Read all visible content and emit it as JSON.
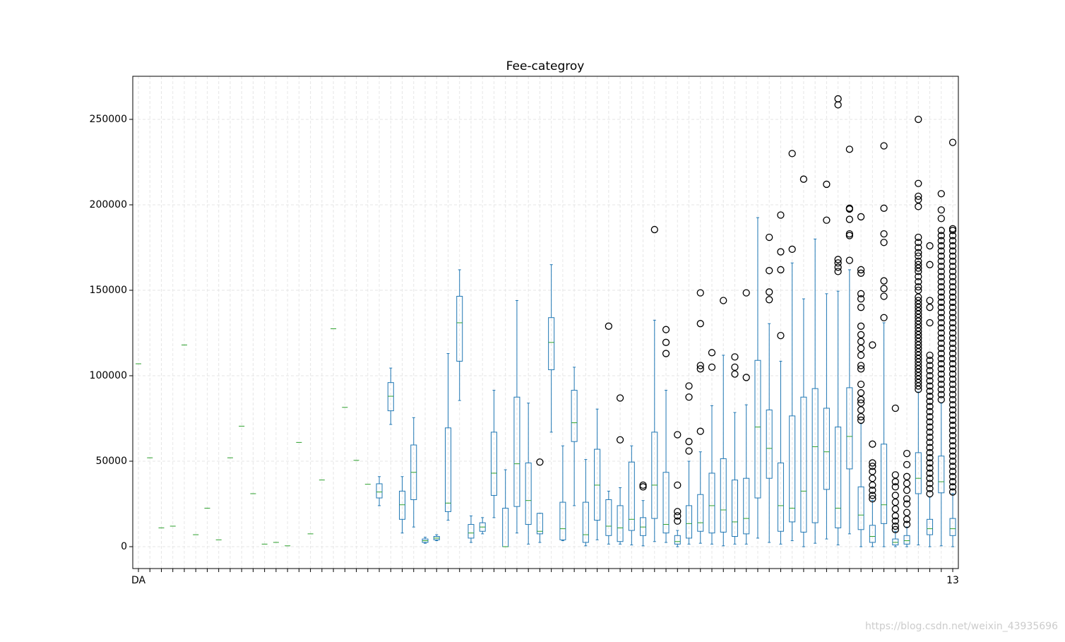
{
  "chart_data": {
    "type": "boxplot",
    "title": "Fee-categroy",
    "categories": [
      "DA",
      null,
      null,
      null,
      null,
      null,
      null,
      null,
      null,
      null,
      null,
      null,
      null,
      null,
      null,
      null,
      null,
      null,
      null,
      null,
      null,
      null,
      null,
      null,
      null,
      null,
      null,
      null,
      null,
      null,
      null,
      null,
      null,
      null,
      null,
      null,
      null,
      null,
      null,
      null,
      null,
      null,
      null,
      null,
      null,
      null,
      null,
      null,
      null,
      null,
      null,
      null,
      null,
      null,
      null,
      null,
      null,
      null,
      null,
      null,
      null,
      null,
      null,
      null,
      null,
      null,
      null,
      null,
      null,
      null,
      null,
      "13"
    ],
    "ylim": [
      -12800,
      275200
    ],
    "yticks": [
      0,
      50000,
      100000,
      150000,
      200000,
      250000
    ],
    "grid": true,
    "box_color": "#1f77b4",
    "median_color": "#2ca02c",
    "boxes": [
      [
        107000,
        107000,
        107000,
        107000,
        107000
      ],
      [
        52000,
        52000,
        52000,
        52000,
        52000
      ],
      [
        11000,
        11000,
        11000,
        11000,
        11000
      ],
      [
        12000,
        12000,
        12000,
        12000,
        12000
      ],
      [
        118000,
        118000,
        118000,
        118000,
        118000
      ],
      [
        7000,
        7000,
        7000,
        7000,
        7000
      ],
      [
        22500,
        22500,
        22500,
        22500,
        22500
      ],
      [
        4000,
        4000,
        4000,
        4000,
        4000
      ],
      [
        52000,
        52000,
        52000,
        52000,
        52000
      ],
      [
        70500,
        70500,
        70500,
        70500,
        70500
      ],
      [
        31000,
        31000,
        31000,
        31000,
        31000
      ],
      [
        1500,
        1500,
        1500,
        1500,
        1500
      ],
      [
        2500,
        2500,
        2500,
        2500,
        2500
      ],
      [
        500,
        500,
        500,
        500,
        500
      ],
      [
        61000,
        61000,
        61000,
        61000,
        61000
      ],
      [
        7500,
        7500,
        7500,
        7500,
        7500
      ],
      [
        39000,
        39000,
        39000,
        39000,
        39000
      ],
      [
        127500,
        127500,
        127500,
        127500,
        127500
      ],
      [
        81500,
        81500,
        81500,
        81500,
        81500
      ],
      [
        50500,
        50500,
        50500,
        50500,
        50500
      ],
      [
        36500,
        36500,
        36500,
        36500,
        36500
      ],
      [
        24000,
        28500,
        32000,
        36800,
        41000
      ],
      [
        71500,
        79500,
        88000,
        96000,
        104500
      ],
      [
        8000,
        16000,
        24500,
        32500,
        41000
      ],
      [
        11500,
        27500,
        43500,
        59500,
        75500
      ],
      [
        2000,
        2500,
        3500,
        4500,
        5500
      ],
      [
        3500,
        4000,
        5000,
        6000,
        7000
      ],
      [
        15500,
        20500,
        25500,
        69500,
        113000
      ],
      [
        85500,
        108500,
        131000,
        146500,
        162000
      ],
      [
        2500,
        5000,
        8000,
        13000,
        18000
      ],
      [
        7500,
        9000,
        11500,
        14000,
        17000
      ],
      [
        17000,
        30000,
        43000,
        67000,
        91500
      ],
      [
        0,
        0,
        0,
        22500,
        45000
      ],
      [
        8000,
        23500,
        48500,
        87500,
        144000
      ],
      [
        1500,
        13000,
        27000,
        49000,
        84000
      ],
      [
        2500,
        7500,
        9000,
        19500,
        19500
      ],
      [
        67000,
        103500,
        119500,
        134000,
        165000
      ],
      [
        3500,
        4000,
        10500,
        26000,
        59000
      ],
      [
        24000,
        61500,
        72500,
        91500,
        105000
      ],
      [
        500,
        2500,
        7000,
        26000,
        51000
      ],
      [
        4000,
        15500,
        36000,
        57000,
        80500
      ],
      [
        1500,
        6500,
        12000,
        27500,
        32500
      ],
      [
        1500,
        3000,
        11000,
        24000,
        34500
      ],
      [
        1000,
        9500,
        16000,
        49500,
        59000
      ],
      [
        500,
        6500,
        11500,
        17000,
        27000
      ],
      [
        3000,
        16500,
        36000,
        67000,
        132500
      ],
      [
        2500,
        8000,
        13000,
        43500,
        91500
      ],
      [
        0,
        1500,
        3000,
        6500,
        9500
      ],
      [
        1500,
        5000,
        13500,
        24000,
        50000
      ],
      [
        2000,
        9000,
        14000,
        30500,
        55500
      ],
      [
        1500,
        8000,
        24000,
        43000,
        82500
      ],
      [
        500,
        8500,
        21500,
        51500,
        112000
      ],
      [
        1500,
        6000,
        14500,
        39000,
        78500
      ],
      [
        1500,
        7500,
        16500,
        40000,
        83000
      ],
      [
        5000,
        28500,
        70000,
        109000,
        192500
      ],
      [
        2500,
        40000,
        57500,
        80000,
        130500
      ],
      [
        1500,
        9000,
        24000,
        49000,
        108500
      ],
      [
        3500,
        14500,
        22500,
        76500,
        166000
      ],
      [
        0,
        8500,
        32500,
        87500,
        145000
      ],
      [
        2000,
        14000,
        58500,
        92500,
        180000
      ],
      [
        4500,
        33500,
        55500,
        81000,
        148000
      ],
      [
        1000,
        11000,
        22500,
        70000,
        149500
      ],
      [
        7500,
        45500,
        64500,
        93000,
        162000
      ],
      [
        0,
        10000,
        18500,
        35000,
        72000
      ],
      [
        0,
        2500,
        6000,
        12500,
        27000
      ],
      [
        0,
        13500,
        24500,
        60000,
        131000
      ],
      [
        0,
        1000,
        2500,
        4500,
        9000
      ],
      [
        0,
        1500,
        3500,
        6500,
        11500
      ],
      [
        1000,
        31000,
        40000,
        55000,
        90500
      ],
      [
        0,
        7000,
        10500,
        16000,
        29000
      ],
      [
        500,
        31500,
        38000,
        53000,
        84000
      ],
      [
        0,
        6500,
        10500,
        16500,
        31000
      ]
    ],
    "outliers": [
      [],
      [],
      [],
      [],
      [],
      [],
      [],
      [],
      [],
      [],
      [],
      [],
      [],
      [],
      [],
      [],
      [],
      [],
      [],
      [],
      [],
      [],
      [],
      [],
      [],
      [],
      [],
      [],
      [],
      [],
      [],
      [],
      [],
      [],
      [],
      [
        49500
      ],
      [],
      [],
      [],
      [],
      [],
      [
        129000
      ],
      [
        62500,
        87000
      ],
      [],
      [
        35000,
        36000
      ],
      [
        185500
      ],
      [
        113000,
        119500,
        127000
      ],
      [
        15000,
        18000,
        20500,
        36000,
        65500
      ],
      [
        56000,
        61500,
        87500,
        94000
      ],
      [
        67500,
        104000,
        106000,
        130500,
        148500
      ],
      [
        105000,
        113500
      ],
      [
        144000
      ],
      [
        101000,
        105000,
        111000
      ],
      [
        99000,
        148500
      ],
      [],
      [
        144500,
        149000,
        161500,
        181000
      ],
      [
        123500,
        162000,
        172500,
        194000
      ],
      [
        174000,
        230000
      ],
      [
        215000
      ],
      [],
      [
        191000,
        212000
      ],
      [
        161000,
        163500,
        166000,
        168000,
        258500,
        262000
      ],
      [
        167500,
        182000,
        183000,
        191500,
        197500,
        198000,
        232500
      ],
      [
        74000,
        76000,
        80000,
        84000,
        86000,
        90000,
        95000,
        104000,
        106000,
        112000,
        116000,
        120000,
        124000,
        129000,
        140000,
        145000,
        148000,
        160000,
        162000,
        193000
      ],
      [
        28000,
        30000,
        33000,
        36000,
        40000,
        44000,
        47000,
        49000,
        60000,
        118000
      ],
      [
        134000,
        146500,
        151000,
        155500,
        178000,
        183000,
        198000,
        234500
      ],
      [
        10000,
        12000,
        15000,
        18000,
        22000,
        26000,
        30000,
        35000,
        38000,
        42000,
        81000
      ],
      [
        13000,
        16000,
        20000,
        25000,
        28000,
        33000,
        37000,
        41000,
        48000,
        54500
      ],
      [
        92000,
        94000,
        96000,
        98000,
        100000,
        102000,
        104000,
        106000,
        108000,
        110000,
        112000,
        114000,
        116000,
        118000,
        120000,
        122000,
        124000,
        126000,
        128000,
        130000,
        132000,
        134000,
        136000,
        138000,
        140000,
        142000,
        144000,
        146000,
        150000,
        152000,
        155000,
        158000,
        161000,
        163000,
        165000,
        167000,
        170000,
        172000,
        175000,
        178000,
        181000,
        199000,
        203000,
        205000,
        212500,
        250000
      ],
      [
        31000,
        34000,
        37000,
        40000,
        43000,
        46000,
        49000,
        52000,
        55000,
        58000,
        61000,
        64000,
        67000,
        70000,
        73000,
        76000,
        79000,
        82000,
        85000,
        88000,
        91000,
        94000,
        97000,
        100000,
        103000,
        106000,
        109000,
        112000,
        131000,
        140000,
        144000,
        165000,
        176000
      ],
      [
        86000,
        89000,
        92000,
        95000,
        98000,
        101000,
        104000,
        107000,
        110000,
        113000,
        116000,
        119000,
        122000,
        125000,
        128000,
        131000,
        134000,
        137000,
        140000,
        143000,
        146000,
        149000,
        152000,
        155000,
        158000,
        161000,
        164000,
        167000,
        170000,
        173000,
        176000,
        179000,
        182000,
        185000,
        192000,
        197000,
        206500
      ],
      [
        32000,
        35000,
        38000,
        41000,
        44000,
        47000,
        50000,
        53000,
        56000,
        59000,
        62000,
        65000,
        68000,
        71000,
        74000,
        77000,
        80000,
        83000,
        86000,
        89000,
        92000,
        95000,
        98000,
        101000,
        104000,
        107000,
        110000,
        113000,
        116000,
        119000,
        122000,
        125000,
        128000,
        131000,
        134000,
        137000,
        140000,
        143000,
        146000,
        149000,
        152000,
        155000,
        158000,
        161000,
        164000,
        167000,
        170000,
        173000,
        176000,
        179000,
        182000,
        185000,
        186000,
        236500
      ]
    ],
    "watermark": "https://blog.csdn.net/weixin_43935696"
  }
}
